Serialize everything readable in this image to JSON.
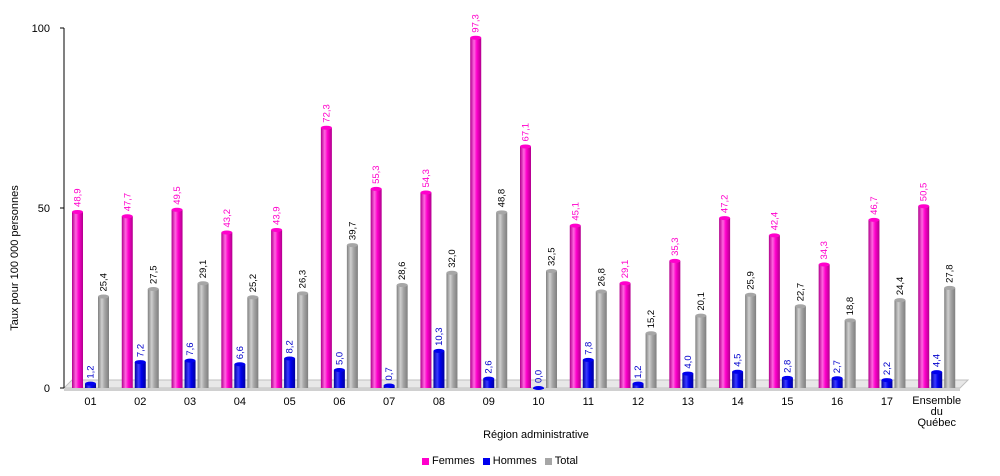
{
  "chart_data": {
    "type": "bar",
    "categories": [
      "01",
      "02",
      "03",
      "04",
      "05",
      "06",
      "07",
      "08",
      "09",
      "10",
      "11",
      "12",
      "13",
      "14",
      "15",
      "16",
      "17",
      "Ensemble du Québec"
    ],
    "series": [
      {
        "name": "Femmes",
        "color": "#ff00cc",
        "label_color": "#ff00cc",
        "values": [
          48.9,
          47.7,
          49.5,
          43.2,
          43.9,
          72.3,
          55.3,
          54.3,
          97.3,
          67.1,
          45.1,
          29.1,
          35.3,
          47.2,
          42.4,
          34.3,
          46.7,
          50.5
        ],
        "labels": [
          "48,9",
          "47,7",
          "49,5",
          "43,2",
          "43,9",
          "72,3",
          "55,3",
          "54,3",
          "97,3",
          "67,1",
          "45,1",
          "29,1",
          "35,3",
          "47,2",
          "42,4",
          "34,3",
          "46,7",
          "50,5"
        ]
      },
      {
        "name": "Hommes",
        "color": "#0000ee",
        "label_color": "#0000cc",
        "values": [
          1.2,
          7.2,
          7.6,
          6.6,
          8.2,
          5.0,
          0.7,
          10.3,
          2.6,
          0.0,
          7.8,
          1.2,
          4.0,
          4.5,
          2.8,
          2.7,
          2.2,
          4.4
        ],
        "labels": [
          "1,2",
          "7,2",
          "7,6",
          "6,6",
          "8,2",
          "5,0",
          "0,7",
          "10,3",
          "2,6",
          "0,0",
          "7,8",
          "1,2",
          "4,0",
          "4,5",
          "2,8",
          "2,7",
          "2,2",
          "4,4"
        ]
      },
      {
        "name": "Total",
        "color": "#a6a6a6",
        "label_color": "#000000",
        "values": [
          25.4,
          27.5,
          29.1,
          25.2,
          26.3,
          39.7,
          28.6,
          32.0,
          48.8,
          32.5,
          26.8,
          15.2,
          20.1,
          25.9,
          22.7,
          18.8,
          24.4,
          27.8
        ],
        "labels": [
          "25,4",
          "27,5",
          "29,1",
          "25,2",
          "26,3",
          "39,7",
          "28,6",
          "32,0",
          "48,8",
          "32,5",
          "26,8",
          "15,2",
          "20,1",
          "25,9",
          "22,7",
          "18,8",
          "24,4",
          "27,8"
        ]
      }
    ],
    "xlabel": "Région administrative",
    "ylabel": "Taux pour 100 000 personnes",
    "ylim": [
      0,
      100
    ],
    "yticks": [
      "0",
      "50",
      "100"
    ],
    "legend_position": "bottom",
    "grid": false
  }
}
